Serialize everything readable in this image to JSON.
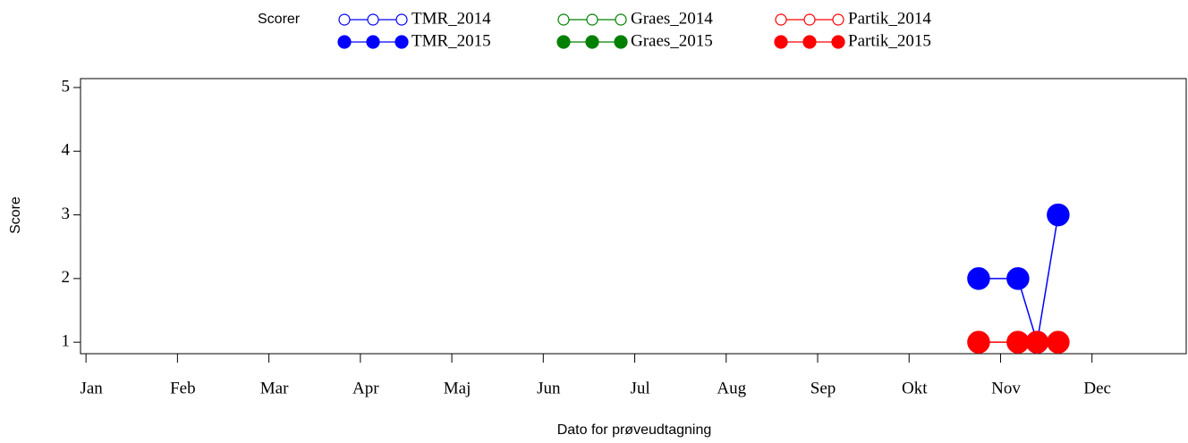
{
  "chart_data": {
    "type": "line",
    "legend_title": "Scorer",
    "y_label": "Score",
    "x_label": "Dato for prøveudtagning",
    "xlim": [
      0.94,
      13.03
    ],
    "xticks": [
      {
        "value": 1,
        "label": "Jan"
      },
      {
        "value": 2,
        "label": "Feb"
      },
      {
        "value": 3,
        "label": "Mar"
      },
      {
        "value": 4,
        "label": "Apr"
      },
      {
        "value": 5,
        "label": "Maj"
      },
      {
        "value": 6,
        "label": "Jun"
      },
      {
        "value": 7,
        "label": "Jul"
      },
      {
        "value": 8,
        "label": "Aug"
      },
      {
        "value": 9,
        "label": "Sep"
      },
      {
        "value": 10,
        "label": "Okt"
      },
      {
        "value": 11,
        "label": "Nov"
      },
      {
        "value": 12,
        "label": "Dec"
      }
    ],
    "ylim": [
      0.82,
      5.14
    ],
    "yticks": [
      1,
      2,
      3,
      4,
      5
    ],
    "series": [
      {
        "name": "TMR_2014",
        "color": "#0000ff",
        "marker": "open",
        "x": [],
        "values": []
      },
      {
        "name": "TMR_2015",
        "color": "#0000ff",
        "marker": "filled",
        "x": [
          10.76,
          11.19,
          11.4,
          11.63
        ],
        "values": [
          2,
          2,
          1,
          3
        ]
      },
      {
        "name": "Graes_2014",
        "color": "#008000",
        "marker": "open",
        "x": [],
        "values": []
      },
      {
        "name": "Graes_2015",
        "color": "#008000",
        "marker": "filled",
        "x": [],
        "values": []
      },
      {
        "name": "Partik_2014",
        "color": "#ff0000",
        "marker": "open",
        "x": [],
        "values": []
      },
      {
        "name": "Partik_2015",
        "color": "#ff0000",
        "marker": "filled",
        "x": [
          10.76,
          11.19,
          11.4,
          11.63
        ],
        "values": [
          1,
          1,
          1,
          1
        ]
      }
    ]
  }
}
